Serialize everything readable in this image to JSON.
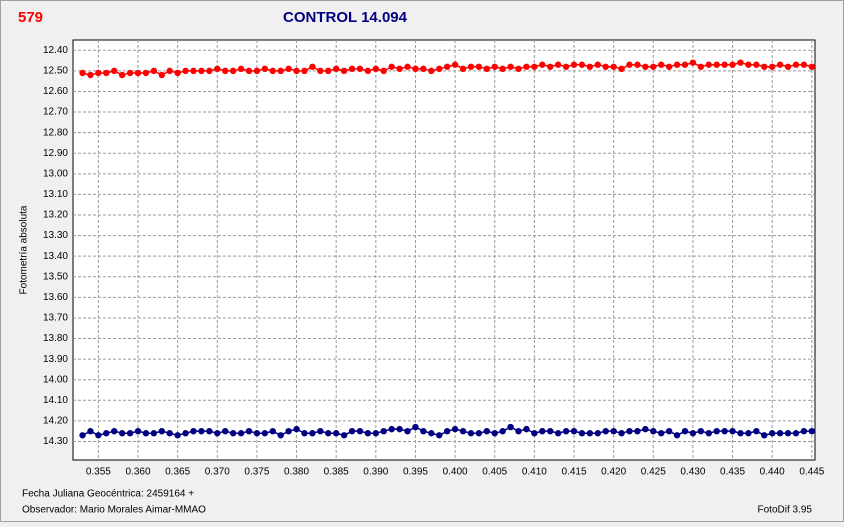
{
  "chart_data": {
    "type": "line",
    "star_label": "579",
    "title": "CONTROL 14.094",
    "y_label": "Fotometría absoluta",
    "x_label": "Fecha Juliana Geocéntrica: 2459164 +",
    "observer": "Observador: Mario Morales Aimar-MMAO",
    "software": "FotoDif 3.95",
    "y_inverted": true,
    "grid": true,
    "xlim": [
      0.3518,
      0.4454
    ],
    "ylim": [
      12.35,
      14.39
    ],
    "xticks": [
      0.355,
      {
        "value": 0.36,
        "label": "0.360"
      },
      0.365,
      {
        "value": 0.37,
        "label": "0.370"
      },
      0.375,
      {
        "value": 0.38,
        "label": "0.380"
      },
      0.385,
      {
        "value": 0.39,
        "label": "0.390"
      },
      0.395,
      {
        "value": 0.4,
        "label": "0.400"
      },
      0.405,
      {
        "value": 0.41,
        "label": "0.410"
      },
      0.415,
      {
        "value": 0.42,
        "label": "0.420"
      },
      0.425,
      {
        "value": 0.43,
        "label": "0.430"
      },
      0.435,
      {
        "value": 0.44,
        "label": "0.440"
      },
      0.445
    ],
    "yticks": [
      {
        "value": 12.4,
        "label": "12.40"
      },
      {
        "value": 12.5,
        "label": "12.50"
      },
      {
        "value": 12.6,
        "label": "12.60"
      },
      {
        "value": 12.7,
        "label": "12.70"
      },
      {
        "value": 12.8,
        "label": "12.80"
      },
      {
        "value": 12.9,
        "label": "12.90"
      },
      {
        "value": 13.0,
        "label": "13.00"
      },
      {
        "value": 13.1,
        "label": "13.10"
      },
      {
        "value": 13.2,
        "label": "13.20"
      },
      {
        "value": 13.3,
        "label": "13.30"
      },
      {
        "value": 13.4,
        "label": "13.40"
      },
      {
        "value": 13.5,
        "label": "13.50"
      },
      {
        "value": 13.6,
        "label": "13.60"
      },
      {
        "value": 13.7,
        "label": "13.70"
      },
      {
        "value": 13.8,
        "label": "13.80"
      },
      {
        "value": 13.9,
        "label": "13.90"
      },
      {
        "value": 14.0,
        "label": "14.00"
      },
      {
        "value": 14.1,
        "label": "14.10"
      },
      {
        "value": 14.2,
        "label": "14.20"
      },
      {
        "value": 14.3,
        "label": "14.30"
      }
    ],
    "x": [
      0.353,
      0.354,
      0.355,
      0.356,
      0.357,
      0.358,
      0.359,
      0.36,
      0.361,
      0.362,
      0.363,
      0.364,
      0.365,
      0.366,
      0.367,
      0.368,
      0.369,
      0.37,
      0.371,
      0.372,
      0.373,
      0.374,
      0.375,
      0.376,
      0.377,
      0.378,
      0.379,
      0.38,
      0.381,
      0.382,
      0.383,
      0.384,
      0.385,
      0.386,
      0.387,
      0.388,
      0.389,
      0.39,
      0.391,
      0.392,
      0.393,
      0.394,
      0.395,
      0.396,
      0.397,
      0.398,
      0.399,
      0.4,
      0.401,
      0.402,
      0.403,
      0.404,
      0.405,
      0.406,
      0.407,
      0.408,
      0.409,
      0.41,
      0.411,
      0.412,
      0.413,
      0.414,
      0.415,
      0.416,
      0.417,
      0.418,
      0.419,
      0.42,
      0.421,
      0.422,
      0.423,
      0.424,
      0.425,
      0.426,
      0.427,
      0.428,
      0.429,
      0.43,
      0.431,
      0.432,
      0.433,
      0.434,
      0.435,
      0.436,
      0.437,
      0.438,
      0.439,
      0.44,
      0.441,
      0.442,
      0.443,
      0.444,
      0.445
    ],
    "series": [
      {
        "color": "#ff0000",
        "values": [
          12.51,
          12.52,
          12.51,
          12.51,
          12.5,
          12.52,
          12.51,
          12.51,
          12.51,
          12.5,
          12.52,
          12.5,
          12.51,
          12.5,
          12.5,
          12.5,
          12.5,
          12.49,
          12.5,
          12.5,
          12.49,
          12.5,
          12.5,
          12.49,
          12.5,
          12.5,
          12.49,
          12.5,
          12.5,
          12.48,
          12.5,
          12.5,
          12.49,
          12.5,
          12.49,
          12.49,
          12.5,
          12.49,
          12.5,
          12.48,
          12.49,
          12.48,
          12.49,
          12.49,
          12.5,
          12.49,
          12.48,
          12.47,
          12.49,
          12.48,
          12.48,
          12.49,
          12.48,
          12.49,
          12.48,
          12.49,
          12.48,
          12.48,
          12.47,
          12.48,
          12.47,
          12.48,
          12.47,
          12.47,
          12.48,
          12.47,
          12.48,
          12.48,
          12.49,
          12.47,
          12.47,
          12.48,
          12.48,
          12.47,
          12.48,
          12.47,
          12.47,
          12.46,
          12.48,
          12.47,
          12.47,
          12.47,
          12.47,
          12.46,
          12.47,
          12.47,
          12.48,
          12.48,
          12.47,
          12.48,
          12.47,
          12.47,
          12.48
        ]
      },
      {
        "color": "#000080",
        "values": [
          14.27,
          14.25,
          14.27,
          14.26,
          14.25,
          14.26,
          14.26,
          14.25,
          14.26,
          14.26,
          14.25,
          14.26,
          14.27,
          14.26,
          14.25,
          14.25,
          14.25,
          14.26,
          14.25,
          14.26,
          14.26,
          14.25,
          14.26,
          14.26,
          14.25,
          14.27,
          14.25,
          14.24,
          14.26,
          14.26,
          14.25,
          14.26,
          14.26,
          14.27,
          14.25,
          14.25,
          14.26,
          14.26,
          14.25,
          14.24,
          14.24,
          14.25,
          14.23,
          14.25,
          14.26,
          14.27,
          14.25,
          14.24,
          14.25,
          14.26,
          14.26,
          14.25,
          14.26,
          14.25,
          14.23,
          14.25,
          14.24,
          14.26,
          14.25,
          14.25,
          14.26,
          14.25,
          14.25,
          14.26,
          14.26,
          14.26,
          14.25,
          14.25,
          14.26,
          14.25,
          14.25,
          14.24,
          14.25,
          14.26,
          14.25,
          14.27,
          14.25,
          14.26,
          14.25,
          14.26,
          14.25,
          14.25,
          14.25,
          14.26,
          14.26,
          14.25,
          14.27,
          14.26,
          14.26,
          14.26,
          14.26,
          14.25,
          14.25
        ]
      }
    ]
  }
}
